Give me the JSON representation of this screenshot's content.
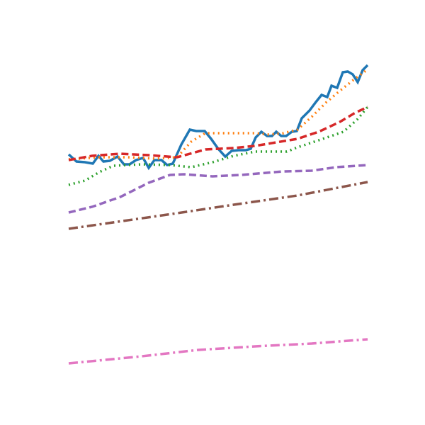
{
  "chart_data": {
    "type": "line",
    "xlim": [
      0,
      422
    ],
    "ylim": [
      0,
      600
    ],
    "grid": false,
    "series": [
      {
        "color": "#1f77b4",
        "linestyle": "solid",
        "x": [
          0,
          11,
          23,
          34,
          42,
          49,
          58,
          69,
          78,
          86,
          95,
          105,
          113,
          121,
          131,
          139,
          147,
          159,
          171,
          180,
          192,
          201,
          211,
          221,
          230,
          240,
          250,
          257,
          264,
          272,
          280,
          287,
          293,
          300,
          307,
          315,
          322,
          329,
          340,
          349,
          357,
          365,
          371,
          379,
          387,
          394,
          401,
          408,
          415,
          422
        ],
        "values": [
          382,
          372,
          371,
          369,
          380,
          372,
          373,
          379,
          368,
          368,
          374,
          377,
          363,
          374,
          374,
          367,
          369,
          396,
          417,
          415,
          415,
          404,
          390,
          379,
          387,
          388,
          388,
          390,
          406,
          414,
          408,
          408,
          414,
          408,
          408,
          414,
          415,
          433,
          444,
          456,
          466,
          463,
          479,
          476,
          498,
          499,
          495,
          484,
          501,
          508
        ]
      },
      {
        "color": "#ff7f0e",
        "linestyle": "dotted",
        "x": [
          0,
          43,
          83,
          123,
          153,
          173,
          193,
          223,
          263,
          283,
          303,
          323,
          343,
          363,
          383,
          403,
          422
        ],
        "values": [
          375,
          378,
          378,
          376,
          378,
          400,
          412,
          412,
          412,
          410,
          412,
          417,
          435,
          455,
          472,
          488,
          502
        ]
      },
      {
        "color": "#d62728",
        "linestyle": "dashed",
        "x": [
          0,
          33,
          73,
          113,
          153,
          193,
          233,
          263,
          293,
          323,
          353,
          383,
          403,
          422
        ],
        "values": [
          374,
          380,
          383,
          381,
          378,
          389,
          391,
          394,
          399,
          404,
          414,
          428,
          440,
          449
        ]
      },
      {
        "color": "#2ca02c",
        "linestyle": "dotted",
        "x": [
          0,
          23,
          43,
          63,
          103,
          143,
          173,
          203,
          233,
          263,
          308,
          323,
          353,
          388,
          408,
          422
        ],
        "values": [
          339,
          345,
          357,
          366,
          368,
          367,
          364,
          371,
          380,
          386,
          386,
          392,
          402,
          414,
          432,
          449
        ]
      },
      {
        "color": "#9467bd",
        "linestyle": "dashed",
        "x": [
          0,
          33,
          73,
          113,
          143,
          163,
          203,
          243,
          303,
          343,
          378,
          422
        ],
        "values": [
          300,
          308,
          322,
          342,
          353,
          354,
          351,
          353,
          358,
          359,
          364,
          367
        ]
      },
      {
        "color": "#8c564b",
        "linestyle": "dashdot",
        "x": [
          0,
          153,
          233,
          323,
          422
        ],
        "values": [
          277,
          299,
          311,
          324,
          343
        ]
      },
      {
        "color": "#e377c2",
        "linestyle": "dashdot",
        "x": [
          0,
          103,
          183,
          263,
          343,
          422
        ],
        "values": [
          87,
          97,
          106,
          111,
          115,
          121
        ]
      }
    ]
  }
}
